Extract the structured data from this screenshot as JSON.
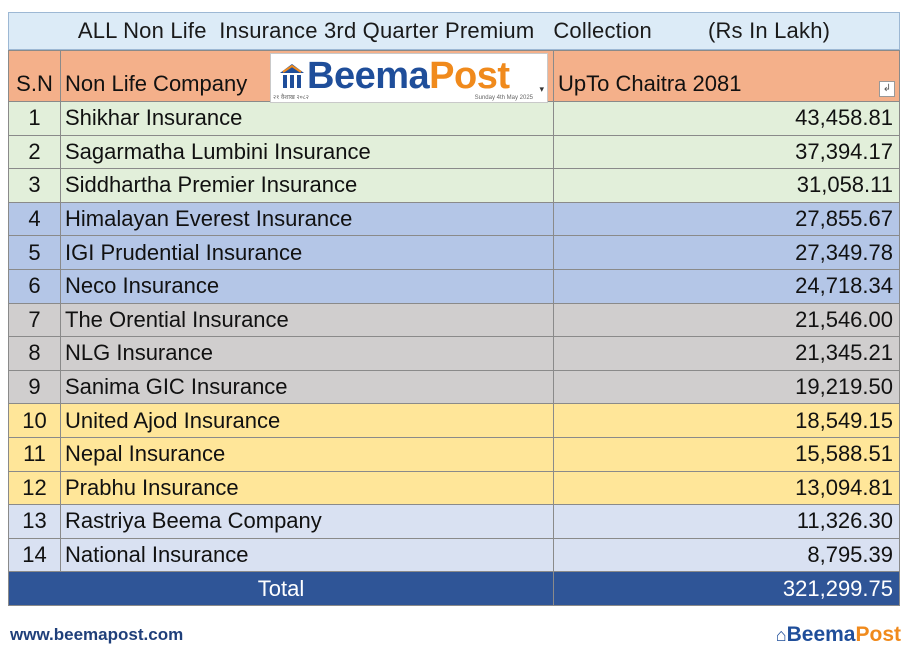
{
  "title": {
    "text": "ALL Non Life  Insurance 3rd Quarter Premium   Collection",
    "unit": "(Rs In Lakh)"
  },
  "headers": {
    "sn": "S.N",
    "company": "Non Life Company",
    "amount": "UpTo Chaitra 2081"
  },
  "rows": [
    {
      "sn": "1",
      "company": "Shikhar Insurance",
      "amount": "43,458.81",
      "band": "green"
    },
    {
      "sn": "2",
      "company": "Sagarmatha Lumbini Insurance",
      "amount": "37,394.17",
      "band": "green"
    },
    {
      "sn": "3",
      "company": "Siddhartha Premier Insurance",
      "amount": "31,058.11",
      "band": "green"
    },
    {
      "sn": "4",
      "company": "Himalayan Everest Insurance",
      "amount": "27,855.67",
      "band": "blue"
    },
    {
      "sn": "5",
      "company": "IGI Prudential Insurance",
      "amount": "27,349.78",
      "band": "blue"
    },
    {
      "sn": "6",
      "company": "Neco Insurance",
      "amount": "24,718.34",
      "band": "blue"
    },
    {
      "sn": "7",
      "company": "The Orential Insurance",
      "amount": "21,546.00",
      "band": "gray"
    },
    {
      "sn": "8",
      "company": "NLG Insurance",
      "amount": "21,345.21",
      "band": "gray"
    },
    {
      "sn": "9",
      "company": "Sanima GIC Insurance",
      "amount": "19,219.50",
      "band": "gray"
    },
    {
      "sn": "10",
      "company": "United Ajod Insurance",
      "amount": "18,549.15",
      "band": "yellow"
    },
    {
      "sn": "11",
      "company": "Nepal Insurance",
      "amount": "15,588.51",
      "band": "yellow"
    },
    {
      "sn": "12",
      "company": "Prabhu Insurance",
      "amount": "13,094.81",
      "band": "yellow"
    },
    {
      "sn": "13",
      "company": "Rastriya Beema Company",
      "amount": "11,326.30",
      "band": "lightblue"
    },
    {
      "sn": "14",
      "company": "National Insurance",
      "amount": "8,795.39",
      "band": "lightblue"
    }
  ],
  "total": {
    "label": "Total",
    "amount": "321,299.75"
  },
  "logo": {
    "beema": "Beema",
    "post": "Post",
    "date_left": "२१ वैशाख २०८२",
    "date_right": "Sunday 4th May 2025"
  },
  "footer": {
    "url": "www.beemapost.com",
    "logo_beema": "Beema",
    "logo_post": "Post"
  },
  "colors": {
    "header": "#f4b08a",
    "green": "#e2efda",
    "blue": "#b4c6e7",
    "gray": "#d0cece",
    "yellow": "#ffe699",
    "lightblue": "#d9e1f2",
    "total": "#2f5597",
    "brand_blue": "#1f4e9a",
    "brand_orange": "#f08a1c"
  }
}
